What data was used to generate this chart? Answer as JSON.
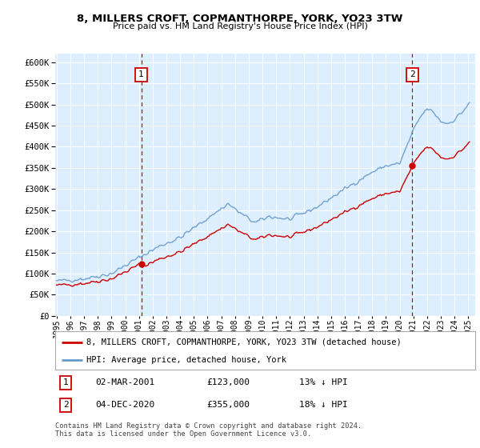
{
  "title": "8, MILLERS CROFT, COPMANTHORPE, YORK, YO23 3TW",
  "subtitle": "Price paid vs. HM Land Registry's House Price Index (HPI)",
  "legend_line1": "8, MILLERS CROFT, COPMANTHORPE, YORK, YO23 3TW (detached house)",
  "legend_line2": "HPI: Average price, detached house, York",
  "sale1_date": "02-MAR-2001",
  "sale1_price": 123000,
  "sale1_label": "13% ↓ HPI",
  "sale2_date": "04-DEC-2020",
  "sale2_price": 355000,
  "sale2_label": "18% ↓ HPI",
  "footnote1": "Contains HM Land Registry data © Crown copyright and database right 2024.",
  "footnote2": "This data is licensed under the Open Government Licence v3.0.",
  "red_color": "#cc0000",
  "blue_color": "#6699cc",
  "background_color": "#ddeeff",
  "grid_color": "#ffffff",
  "ylim": [
    0,
    620000
  ],
  "yticks": [
    0,
    50000,
    100000,
    150000,
    200000,
    250000,
    300000,
    350000,
    400000,
    450000,
    500000,
    550000,
    600000
  ],
  "sale1_x": 2001.17,
  "sale2_x": 2020.92,
  "xmin": 1994.9,
  "xmax": 2025.5
}
